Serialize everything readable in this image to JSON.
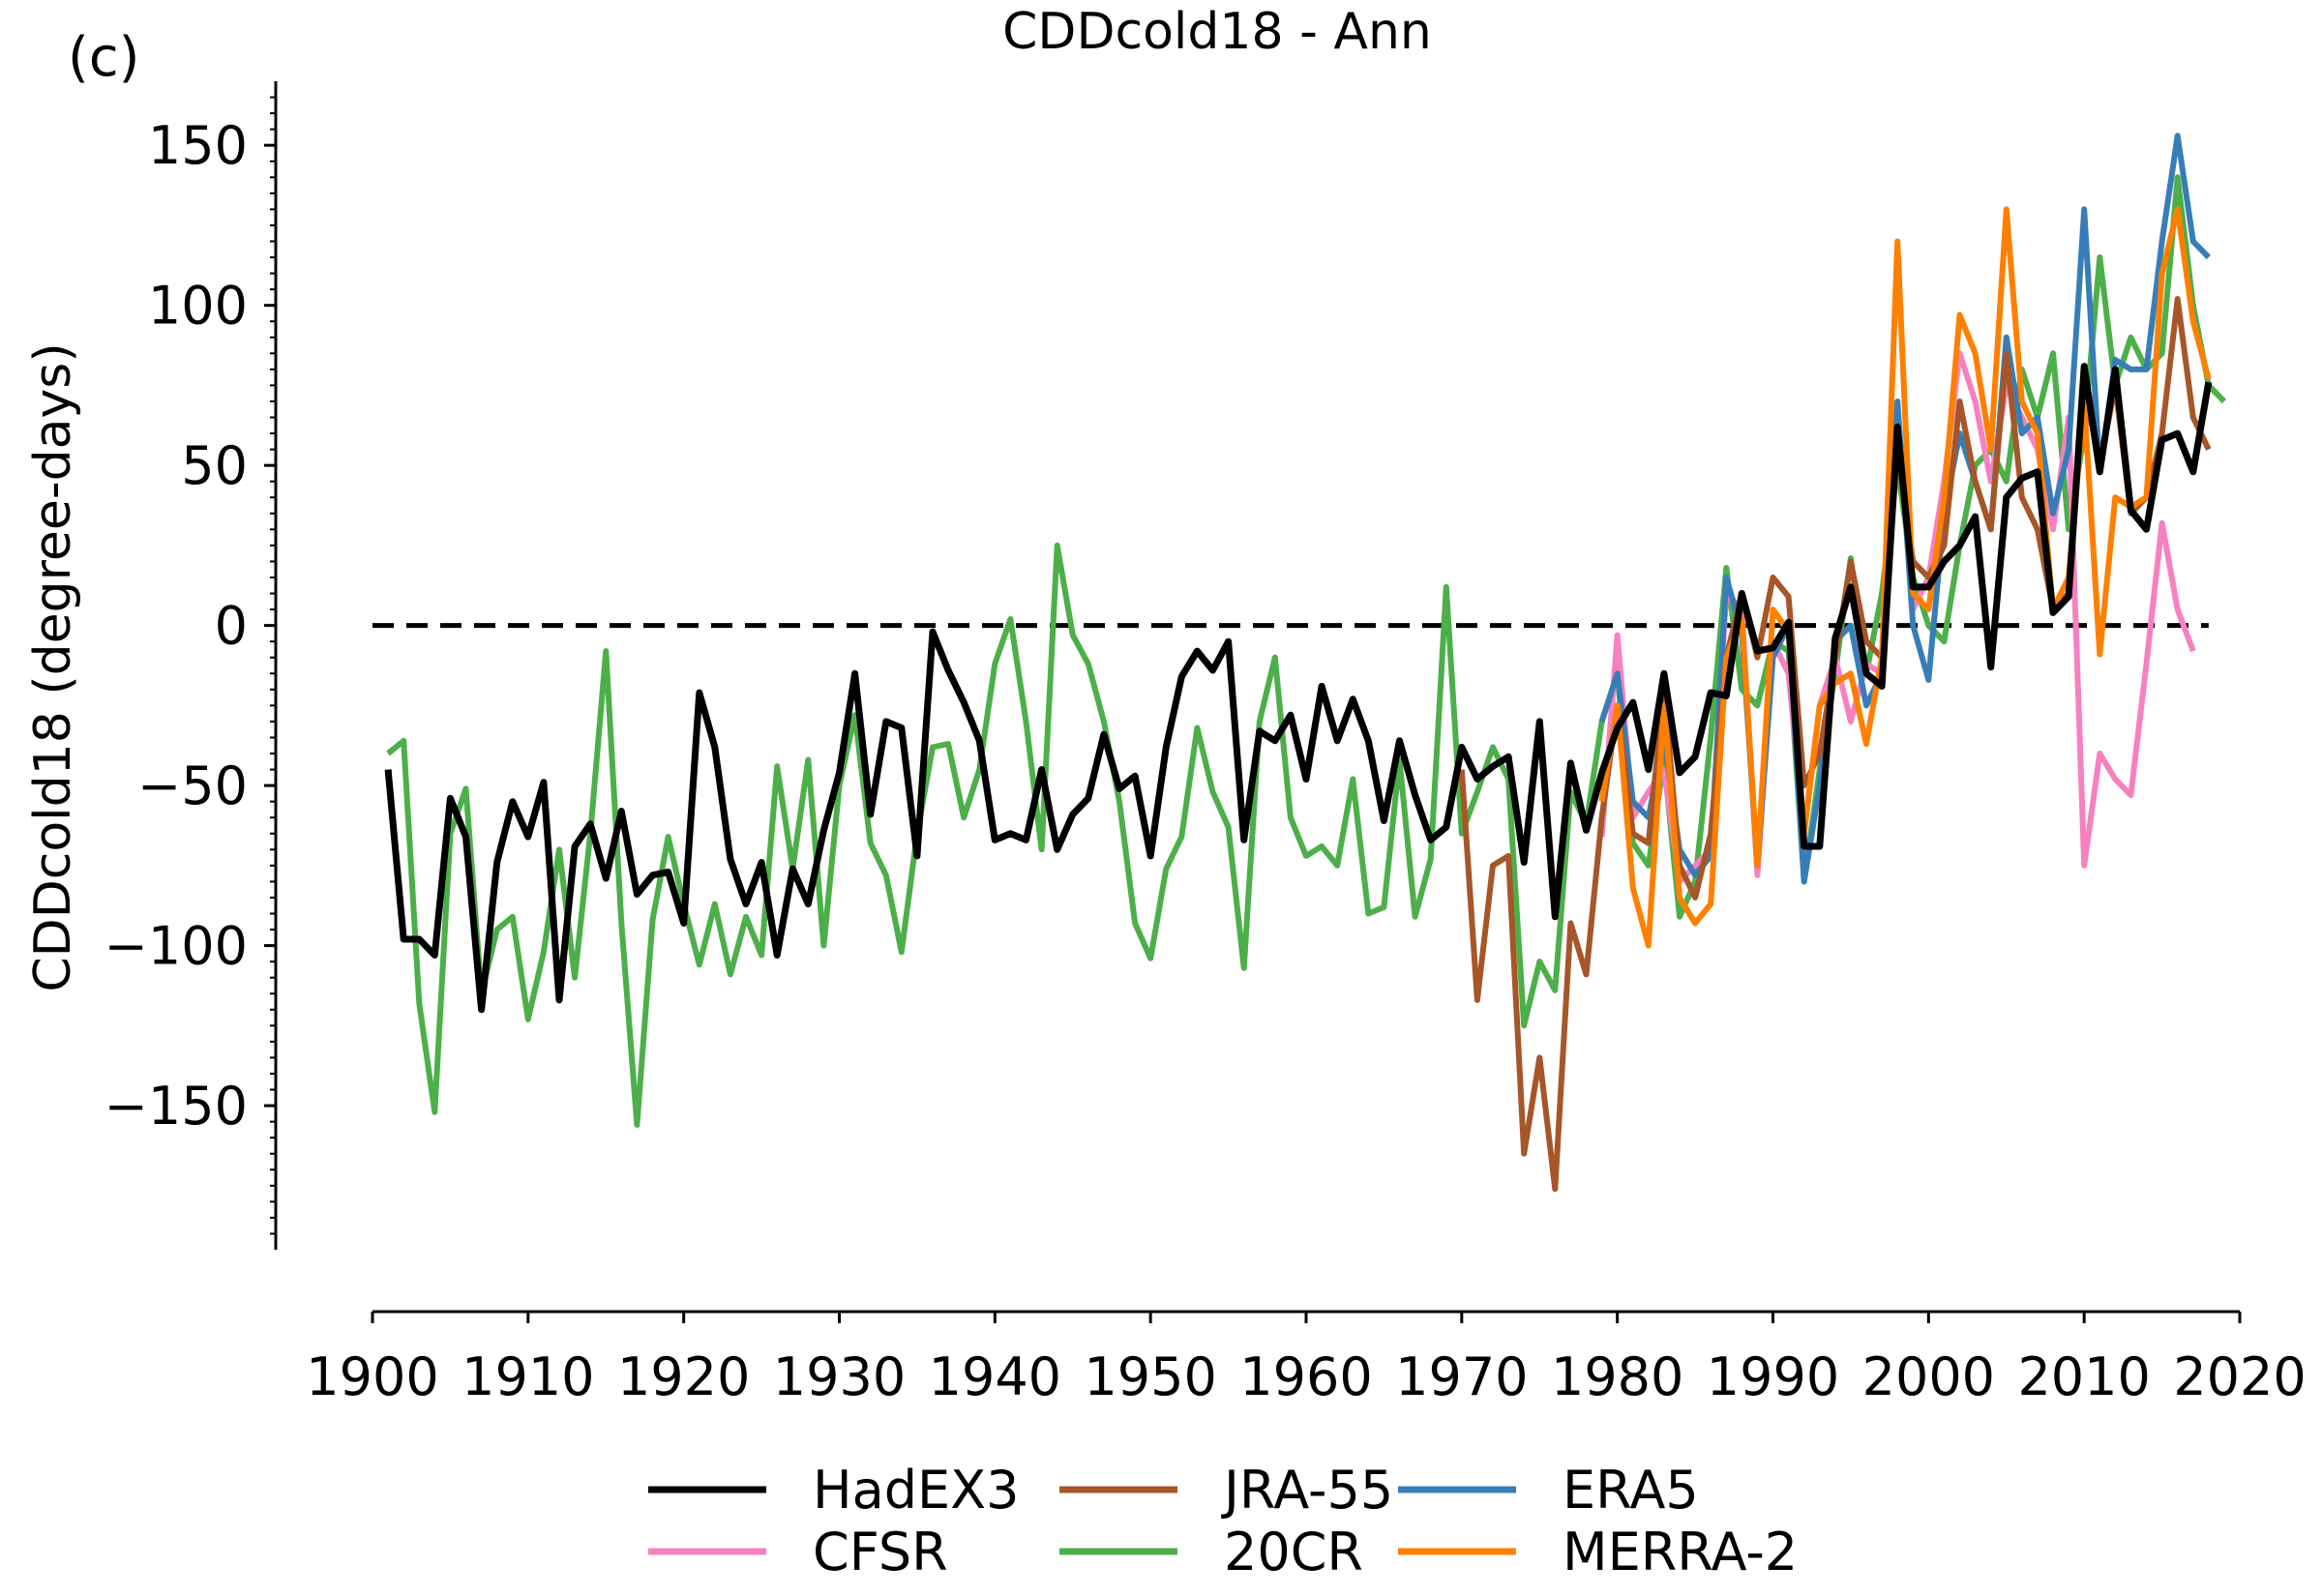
{
  "panel_label": "(c)",
  "chart_data": {
    "type": "line",
    "title": "CDDcold18 - Ann",
    "xlabel": "",
    "ylabel": "CDDcold18 (degree-days)",
    "xlim": [
      1900,
      2020
    ],
    "ylim": [
      -195,
      170
    ],
    "xticks": [
      1900,
      1910,
      1920,
      1930,
      1940,
      1950,
      1960,
      1970,
      1980,
      1990,
      2000,
      2010,
      2020
    ],
    "yticks": [
      -150,
      -100,
      -50,
      0,
      50,
      100,
      150
    ],
    "xtick_labels": [
      "1900",
      "1910",
      "1920",
      "1930",
      "1940",
      "1950",
      "1960",
      "1970",
      "1980",
      "1990",
      "2000",
      "2010",
      "2020"
    ],
    "ytick_labels": [
      "−150",
      "−100",
      "−50",
      "0",
      "50",
      "100",
      "150"
    ],
    "reference_line": {
      "y": 0,
      "style": "dashed",
      "color": "#000000"
    },
    "legend": {
      "placement": "bottom-center, below axes, 3 columns"
    },
    "grid": false,
    "series": [
      {
        "name": "20CR",
        "color": "#4daf4a",
        "x_start": 1901,
        "values": [
          -40,
          -36,
          -118,
          -152,
          -65,
          -51,
          -115,
          -95,
          -91,
          -123,
          -102,
          -70,
          -110,
          -65,
          -8,
          -93,
          -156,
          -92,
          -66,
          -87,
          -106,
          -87,
          -109,
          -91,
          -103,
          -44,
          -76,
          -42,
          -100,
          -50,
          -28,
          -68,
          -78,
          -102,
          -65,
          -38,
          -37,
          -60,
          -45,
          -12,
          2,
          -30,
          -70,
          25,
          -3,
          -12,
          -30,
          -55,
          -93,
          -104,
          -76,
          -66,
          -32,
          -52,
          -63,
          -107,
          -30,
          -10,
          -60,
          -72,
          -69,
          -75,
          -48,
          -90,
          -88,
          -42,
          -91,
          -73,
          12,
          -65,
          -52,
          -38,
          -48,
          -125,
          -105,
          -114,
          -52,
          -62,
          -30,
          -15,
          -68,
          -75,
          -42,
          -91,
          -80,
          -35,
          18,
          -20,
          -25,
          -5,
          -8,
          -80,
          -45,
          -15,
          21,
          -15,
          10,
          50,
          15,
          0,
          -5,
          25,
          50,
          55,
          45,
          80,
          65,
          85,
          30,
          60,
          115,
          75,
          90,
          80,
          85,
          140,
          100,
          75,
          70
        ]
      },
      {
        "name": "HadEX3",
        "color": "#000000",
        "x_start": 1901,
        "values": [
          -45,
          -98,
          -98,
          -103,
          -54,
          -66,
          -120,
          -74,
          -55,
          -66,
          -49,
          -117,
          -69,
          -62,
          -79,
          -58,
          -84,
          -78,
          -77,
          -93,
          -21,
          -38,
          -73,
          -87,
          -74,
          -103,
          -76,
          -87,
          -64,
          -46,
          -15,
          -59,
          -30,
          -32,
          -72,
          -2,
          -14,
          -24,
          -36,
          -67,
          -65,
          -67,
          -45,
          -70,
          -59,
          -54,
          -34,
          -51,
          -47,
          -72,
          -38,
          -16,
          -8,
          -14,
          -5,
          -67,
          -33,
          -36,
          -28,
          -48,
          -19,
          -36,
          -23,
          -36,
          -61,
          -36,
          -53,
          -67,
          -63,
          -38,
          -48,
          -44,
          -41,
          -74,
          -30,
          -91,
          -43,
          -64,
          -46,
          -32,
          -24,
          -45,
          -15,
          -46,
          -41,
          -21,
          -22,
          10,
          -8,
          -7,
          1,
          -69,
          -69,
          -4,
          12,
          -15,
          -19,
          62,
          12,
          12,
          20,
          25,
          34,
          -13,
          40,
          46,
          48,
          4,
          9,
          81,
          48,
          80,
          36,
          30,
          58,
          60,
          48,
          76
        ]
      },
      {
        "name": "CFSR",
        "color": "#f781bf",
        "x_start": 1979,
        "values": [
          -66,
          -3,
          -60,
          -52,
          -45,
          -80,
          -75,
          -70,
          10,
          5,
          -78,
          -5,
          -15,
          -65,
          -25,
          -10,
          -30,
          -12,
          -15,
          65,
          5,
          15,
          45,
          85,
          70,
          45,
          75,
          65,
          55,
          30,
          65,
          -75,
          -40,
          -48,
          -53,
          -12,
          32,
          5,
          -8
        ]
      },
      {
        "name": "ERA5",
        "color": "#377eb8",
        "x_start": 1979,
        "values": [
          -30,
          -15,
          -55,
          -60,
          -35,
          -70,
          -78,
          -72,
          15,
          -2,
          -75,
          -10,
          0,
          -80,
          -50,
          -5,
          0,
          -25,
          -15,
          70,
          0,
          -17,
          35,
          60,
          45,
          30,
          90,
          60,
          65,
          35,
          55,
          130,
          48,
          83,
          80,
          80,
          120,
          153,
          120,
          115
        ]
      },
      {
        "name": "JRA-55",
        "color": "#a65628",
        "x_start": 1970,
        "values": [
          -45,
          -117,
          -75,
          -72,
          -165,
          -135,
          -176,
          -93,
          -109,
          -60,
          -25,
          -65,
          -68,
          -20,
          -75,
          -85,
          -65,
          -10,
          10,
          -10,
          15,
          9,
          -50,
          -40,
          -10,
          20,
          -5,
          -10,
          55,
          20,
          15,
          25,
          70,
          45,
          30,
          85,
          40,
          30,
          5,
          10,
          75,
          50,
          75,
          35,
          40,
          60,
          102,
          65,
          55
        ]
      },
      {
        "name": "MERRA-2",
        "color": "#ff7f00",
        "x_start": 1979,
        "values": [
          -55,
          -25,
          -82,
          -100,
          -25,
          -85,
          -93,
          -87,
          -10,
          2,
          -75,
          5,
          -2,
          -65,
          -25,
          -18,
          -15,
          -37,
          -10,
          120,
          10,
          5,
          40,
          97,
          85,
          55,
          130,
          70,
          60,
          5,
          15,
          70,
          -9,
          40,
          37,
          40,
          110,
          130,
          95,
          77
        ]
      }
    ],
    "legend_order": [
      "HadEX3",
      "CFSR",
      "JRA-55",
      "20CR",
      "ERA5",
      "MERRA-2"
    ]
  }
}
